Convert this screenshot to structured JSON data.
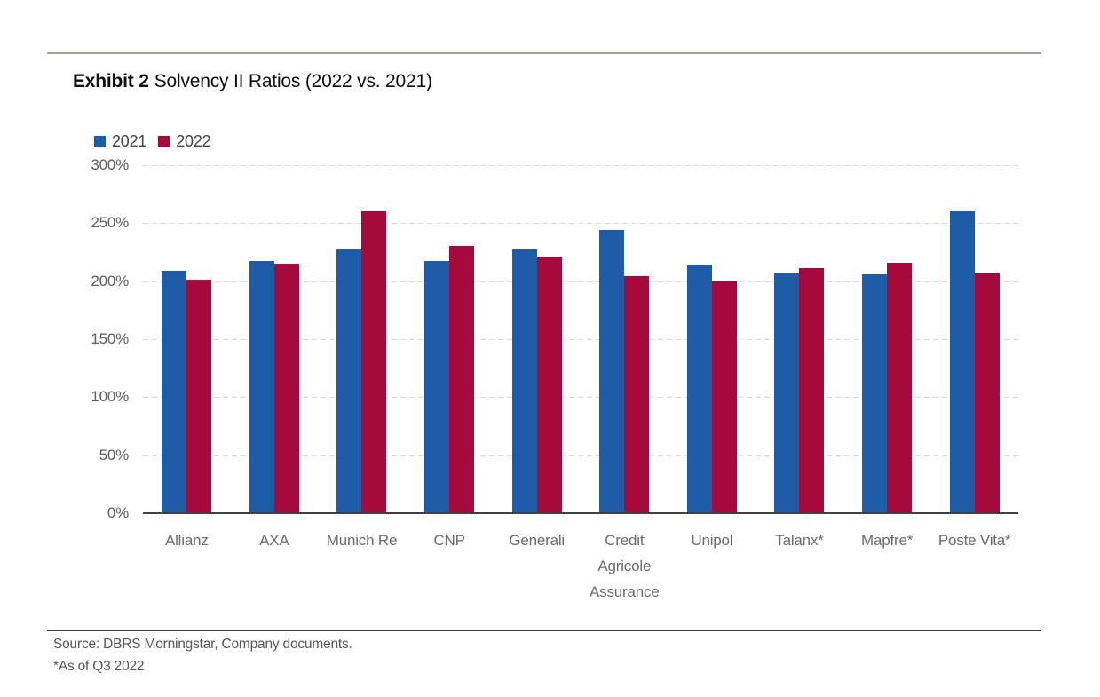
{
  "page": {
    "title_bold": "Exhibit 2",
    "title_rest": "Solvency II Ratios (2022 vs. 2021)",
    "source_line": "Source: DBRS Morningstar, Company documents.",
    "footnote_line": "*As of Q3 2022"
  },
  "colors": {
    "series_2021": "#1e5ca8",
    "series_2022": "#a60a3c",
    "gridline": "#d9d9d9",
    "axis_line": "#404040",
    "top_rule": "#a0a099",
    "bottom_rule": "#3d3d3d"
  },
  "chart_data": {
    "type": "bar",
    "title": "Exhibit 2 Solvency II Ratios (2022 vs. 2021)",
    "categories": [
      "Allianz",
      "AXA",
      "Munich Re",
      "CNP",
      "Generali",
      "Credit Agricole Assurance",
      "Unipol",
      "Talanx*",
      "Mapfre*",
      "Poste Vita*"
    ],
    "series": [
      {
        "name": "2021",
        "color": "#1e5ca8",
        "values": [
          209,
          217,
          227,
          217,
          227,
          244,
          214,
          207,
          206,
          260
        ]
      },
      {
        "name": "2022",
        "color": "#a60a3c",
        "values": [
          201,
          215,
          260,
          230,
          221,
          204,
          200,
          211,
          216,
          207
        ]
      }
    ],
    "xlabel": "",
    "ylabel": "",
    "ylim": [
      0,
      300
    ],
    "yticks": [
      0,
      50,
      100,
      150,
      200,
      250,
      300
    ],
    "ytick_suffix": "%",
    "grid": "horizontal-dashed",
    "legend_position": "top-left",
    "source": "Source: DBRS Morningstar, Company documents.",
    "footnote": "*As of Q3 2022"
  }
}
